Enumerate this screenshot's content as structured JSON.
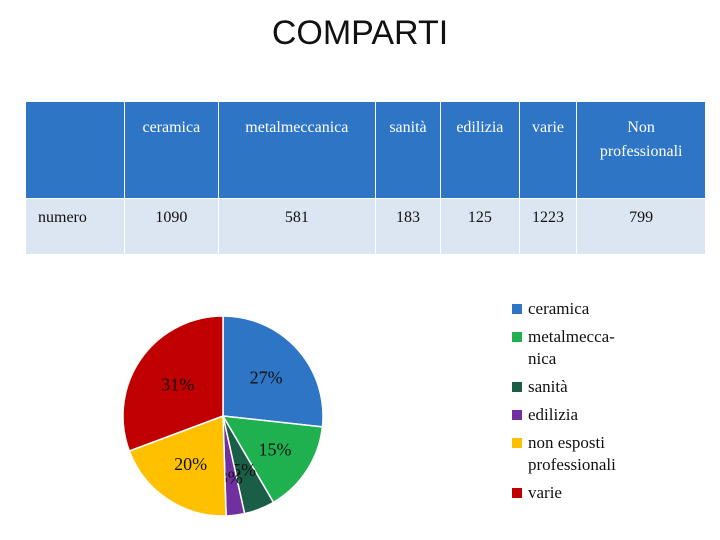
{
  "title": "COMPARTI",
  "table": {
    "headers": [
      "",
      "ceramica",
      "metalmeccanica",
      "sanità",
      "edilizia",
      "varie",
      "Non\nprofessionali"
    ],
    "row_label": "numero",
    "values": [
      "1090",
      "581",
      "183",
      "125",
      "1223",
      "799"
    ]
  },
  "chart_data": {
    "type": "pie",
    "slices": [
      {
        "label": "ceramica",
        "value": 27,
        "color": "#2e75c6",
        "data_label": "27%"
      },
      {
        "label": "metalmeccanica",
        "value": 15,
        "color": "#1fb150",
        "data_label": "15%"
      },
      {
        "label": "sanità",
        "value": 5,
        "color": "#1a5e48",
        "data_label": "5%"
      },
      {
        "label": "edilizia",
        "value": 3,
        "color": "#7030a0",
        "data_label": "3%"
      },
      {
        "label": "non esposti professionali",
        "value": 20,
        "color": "#ffc000",
        "data_label": "20%"
      },
      {
        "label": "varie",
        "value": 31,
        "color": "#c00000",
        "data_label": "31%"
      }
    ],
    "legend": [
      {
        "label": "ceramica",
        "color": "#2e75c6"
      },
      {
        "label": "metalmecca-\nnica",
        "color": "#1fb150"
      },
      {
        "label": "sanità",
        "color": "#1a5e48"
      },
      {
        "label": "edilizia",
        "color": "#7030a0"
      },
      {
        "label": "non esposti\nprofessionali",
        "color": "#ffc000"
      },
      {
        "label": "varie",
        "color": "#c00000"
      }
    ],
    "legend_position": "right"
  }
}
